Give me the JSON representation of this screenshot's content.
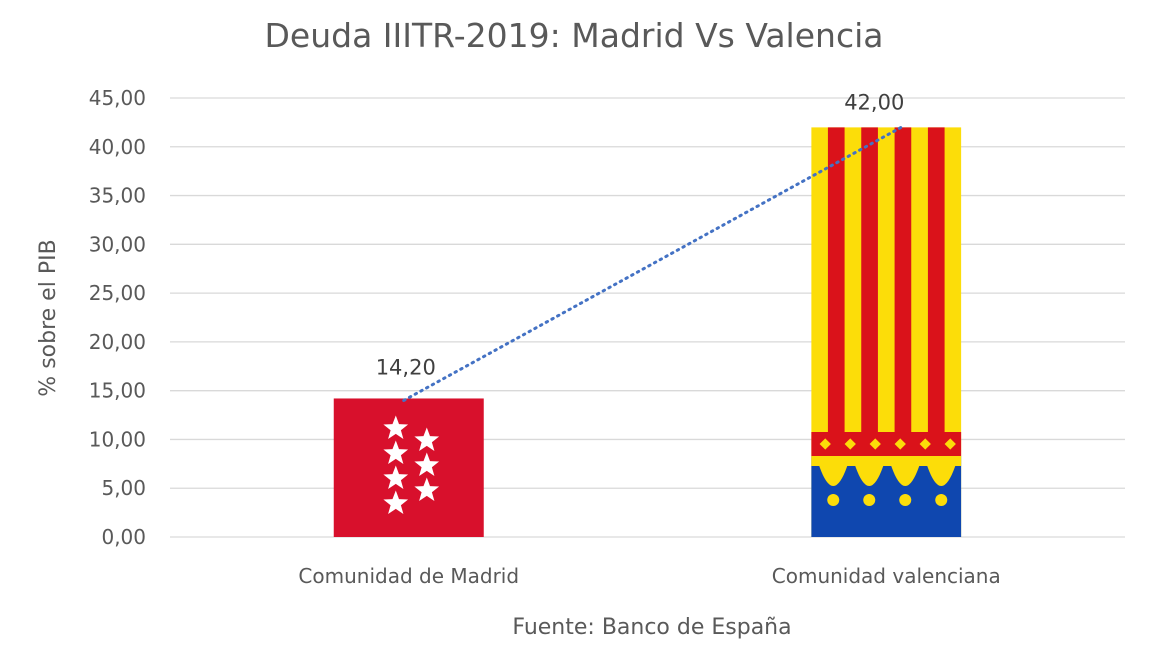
{
  "chart_data": {
    "type": "bar",
    "title": "Deuda IIITR-2019: Madrid Vs Valencia",
    "categories": [
      "Comunidad de Madrid",
      "Comunidad valenciana"
    ],
    "values": [
      14.2,
      42.0
    ],
    "data_labels": [
      "14,20",
      "42,00"
    ],
    "ylabel": "% sobre el PIB",
    "xlabel": "",
    "ylim": [
      0,
      45
    ],
    "ytick_values": [
      0,
      5,
      10,
      15,
      20,
      25,
      30,
      35,
      40,
      45
    ],
    "ytick_labels": [
      "0,00",
      "5,00",
      "10,00",
      "15,00",
      "20,00",
      "25,00",
      "30,00",
      "35,00",
      "40,00",
      "45,00"
    ],
    "grid": true,
    "trendline": "dotted",
    "source_note": "Fuente: Banco de España",
    "bar_fills": [
      "flag-madrid",
      "flag-valencia"
    ],
    "colors": {
      "madrid_red": "#d8102c",
      "madrid_star": "#ffffff",
      "valencia_red": "#da121a",
      "valencia_yellow": "#fcdd09",
      "valencia_blue": "#0f47af",
      "trendline": "#4472c4",
      "gridline": "#d9d9d9",
      "text": "#595959"
    }
  }
}
